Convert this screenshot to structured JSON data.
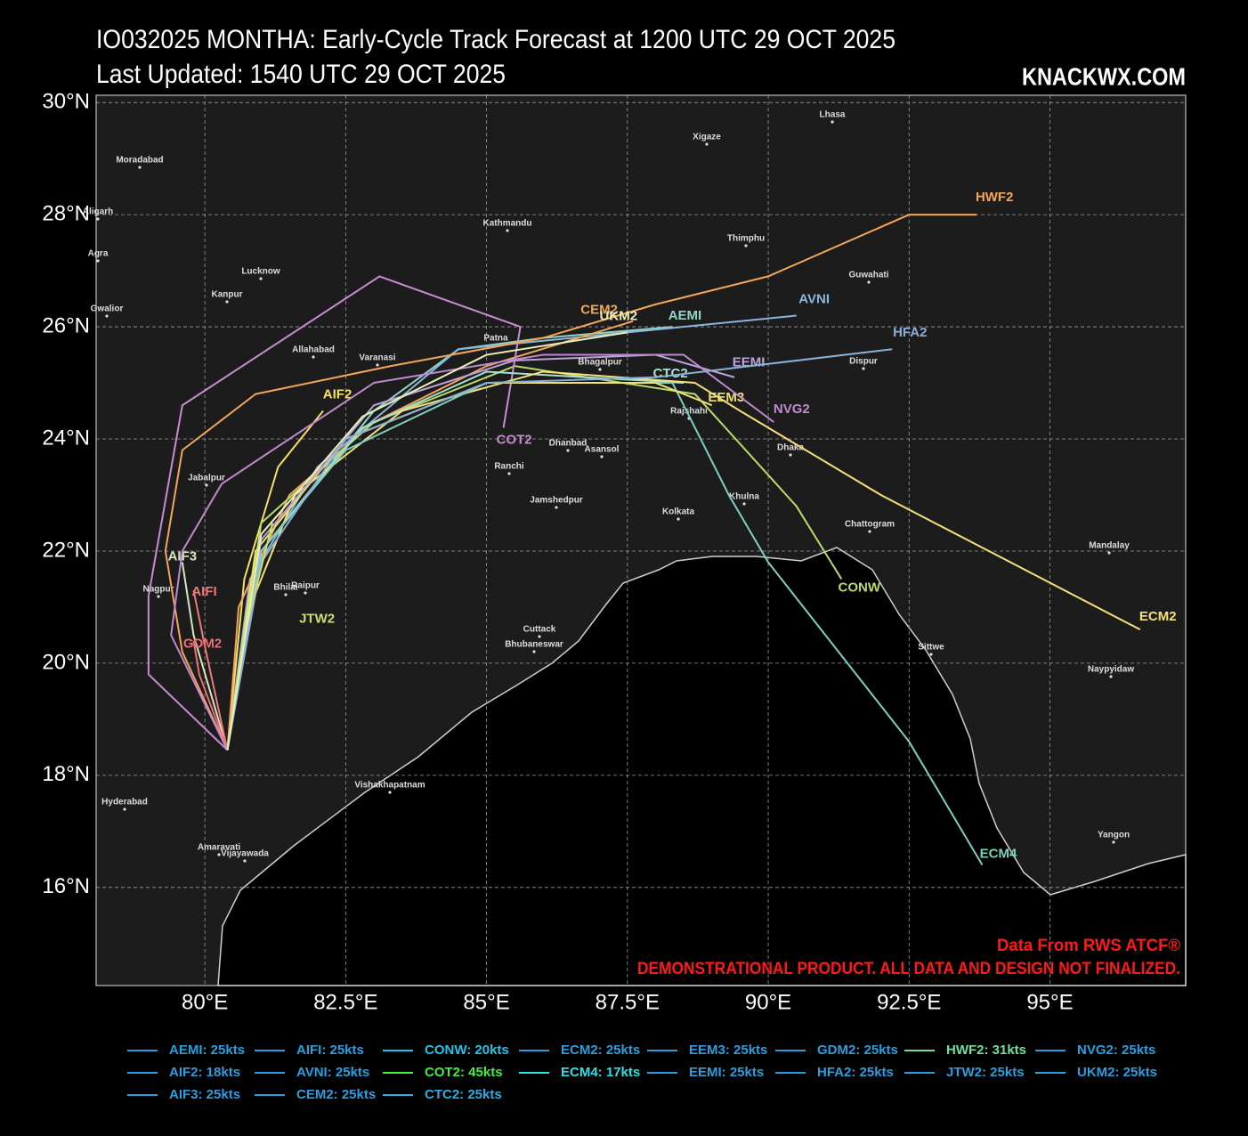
{
  "chart_data": {
    "type": "line",
    "title": "IO032025 MONTHA: Early-Cycle Track Forecast at 1200 UTC 29 OCT 2025",
    "subtitle": "Last Updated: 1540 UTC 29 OCT 2025",
    "brand": "KNACKWX.COM",
    "annotations": [
      "Data From RWS ATCF®",
      "DEMONSTRATIONAL PRODUCT. ALL DATA AND DESIGN NOT FINALIZED."
    ],
    "grid": true,
    "xlim": [
      78.07,
      97.41
    ],
    "ylim": [
      14.25,
      30.13
    ],
    "xticks": [
      {
        "value": 80,
        "label": "80°E"
      },
      {
        "value": 82.5,
        "label": "82.5°E"
      },
      {
        "value": 85,
        "label": "85°E"
      },
      {
        "value": 87.5,
        "label": "87.5°E"
      },
      {
        "value": 90,
        "label": "90°E"
      },
      {
        "value": 92.5,
        "label": "92.5°E"
      },
      {
        "value": 95,
        "label": "95°E"
      }
    ],
    "yticks": [
      {
        "value": 16,
        "label": "16°N"
      },
      {
        "value": 18,
        "label": "18°N"
      },
      {
        "value": 20,
        "label": "20°N"
      },
      {
        "value": 22,
        "label": "22°N"
      },
      {
        "value": 24,
        "label": "24°N"
      },
      {
        "value": 26,
        "label": "26°N"
      },
      {
        "value": 28,
        "label": "28°N"
      },
      {
        "value": 30,
        "label": "30°N"
      }
    ],
    "cities": [
      "Lhasa",
      "Xigaze",
      "Moradabad",
      "Aligarh",
      "Kathmandu",
      "Thimphu",
      "Agra",
      "Lucknow",
      "Guwahati",
      "Kanpur",
      "Gwalior",
      "Allahabad",
      "Varanasi",
      "Patna",
      "Bhagalpur",
      "Dispur",
      "Rajshahi",
      "Dhaka",
      "Dhanbad",
      "Asansol",
      "Ranchi",
      "Jabalpur",
      "Jamshedpur",
      "Khulna",
      "Kolkata",
      "Chattogram",
      "Mandalay",
      "Nagpur",
      "Bhilai",
      "Raipur",
      "Cuttack",
      "Bhubaneswar",
      "Sittwe",
      "Naypyidaw",
      "Vishakhapatnam",
      "Hyderabad",
      "Amaravati",
      "Vijayawada",
      "Yangon"
    ],
    "series": [
      {
        "name": "AEMI",
        "label": "AEMI: 25kts",
        "color": "#8fd6c8",
        "legend_color": "#2a9fe0",
        "x": [
          80.4,
          81.0,
          83.0,
          84.5,
          86.0,
          88.3
        ],
        "values": [
          18.45,
          22.0,
          24.5,
          25.6,
          25.8,
          26.0
        ]
      },
      {
        "name": "AIF2",
        "label": "AIF2: 18kts",
        "color": "#f5e06a",
        "legend_color": "#2a9fe0",
        "x": [
          80.4,
          80.7,
          81.3,
          82.1
        ],
        "values": [
          18.45,
          21.5,
          23.5,
          24.5
        ]
      },
      {
        "name": "AIF3",
        "label": "AIF3: 25kts",
        "color": "#d8e6c0",
        "legend_color": "#2a9fe0",
        "x": [
          80.4,
          79.8,
          79.6
        ],
        "values": [
          18.45,
          20.5,
          21.8
        ]
      },
      {
        "name": "AIFI",
        "label": "AIFI: 25kts",
        "color": "#f07878",
        "legend_color": "#2a9fe0",
        "x": [
          80.4,
          80.0,
          79.8
        ],
        "values": [
          18.45,
          20.3,
          21.3
        ]
      },
      {
        "name": "AVNI",
        "label": "AVNI: 25kts",
        "color": "#8cb4dc",
        "legend_color": "#2a9fe0",
        "x": [
          80.4,
          80.8,
          82.0,
          84.5,
          87.5,
          90.5
        ],
        "values": [
          18.45,
          21.5,
          23.5,
          25.6,
          25.9,
          26.2
        ]
      },
      {
        "name": "CEM2",
        "label": "CEM2: 25kts",
        "color": "#f5a55a",
        "legend_color": "#2a9fe0",
        "x": [
          80.4,
          80.6,
          81.5,
          83.0,
          85.0,
          87.6
        ],
        "values": [
          18.45,
          21.0,
          23.0,
          24.3,
          25.3,
          26.1
        ]
      },
      {
        "name": "CONW",
        "label": "CONW: 20kts",
        "color": "#b8dc6a",
        "legend_color": "#22c4ea",
        "x": [
          80.4,
          81.0,
          83.0,
          85.5,
          88.7,
          90.5,
          91.3
        ],
        "values": [
          18.45,
          22.5,
          24.3,
          25.3,
          24.8,
          22.8,
          21.5
        ]
      },
      {
        "name": "COT2",
        "label": "COT2: 45kts",
        "color": "#c88cd2",
        "legend_color": "#40f040",
        "x": [
          80.4,
          79.0,
          79.0,
          79.6,
          83.1,
          85.6,
          85.3
        ],
        "values": [
          18.45,
          19.8,
          21.2,
          24.6,
          26.9,
          26.0,
          24.2
        ]
      },
      {
        "name": "CTC2",
        "label": "CTC2: 25kts",
        "color": "#a8e0d0",
        "legend_color": "#2ab0e4",
        "x": [
          80.4,
          81.0,
          82.8,
          85.0,
          88.5
        ],
        "values": [
          18.45,
          22.0,
          24.2,
          25.2,
          25.0
        ]
      },
      {
        "name": "ECM2",
        "label": "ECM2: 25kts",
        "color": "#f5e07a",
        "legend_color": "#2a9fe0",
        "x": [
          80.4,
          80.8,
          81.6,
          83.5,
          86.0,
          88.7,
          89.5,
          92.0,
          96.6
        ],
        "values": [
          18.45,
          21.0,
          23.0,
          24.5,
          25.2,
          25.0,
          24.5,
          23.0,
          20.6
        ]
      },
      {
        "name": "ECM4",
        "label": "ECM4: 17kts",
        "color": "#7ecfc0",
        "legend_color": "#30e0e4",
        "x": [
          80.4,
          81.0,
          82.5,
          85.0,
          88.3,
          89.3,
          90.0,
          92.5,
          93.8
        ],
        "values": [
          18.45,
          22.0,
          23.8,
          25.0,
          25.0,
          23.0,
          21.8,
          18.6,
          16.4
        ]
      },
      {
        "name": "EEM3",
        "label": "EEM3: 25kts",
        "color": "#f0e070",
        "legend_color": "#2a9fe0",
        "x": [
          80.4,
          80.9,
          82.5,
          85.0,
          88.0,
          89.0
        ],
        "values": [
          18.45,
          22.0,
          24.0,
          25.0,
          25.0,
          24.6
        ]
      },
      {
        "name": "EEMI",
        "label": "EEMI: 25kts",
        "color": "#b9a3d9",
        "legend_color": "#2a9fe0",
        "x": [
          80.4,
          81.0,
          83.0,
          85.5,
          88.0,
          89.4
        ],
        "values": [
          18.45,
          22.2,
          24.6,
          25.4,
          25.5,
          25.1
        ]
      },
      {
        "name": "GDM2",
        "label": "GDM2: 25kts",
        "color": "#e87070",
        "legend_color": "#2a9fe0",
        "x": [
          80.4,
          79.9,
          79.8
        ],
        "values": [
          18.45,
          19.8,
          20.4
        ]
      },
      {
        "name": "HFA2",
        "label": "HFA2: 25kts",
        "color": "#8bb0d6",
        "legend_color": "#2a9fe0",
        "x": [
          80.4,
          81.0,
          82.5,
          85.0,
          88.0,
          92.2
        ],
        "values": [
          18.45,
          21.8,
          24.0,
          25.0,
          25.1,
          25.6
        ]
      },
      {
        "name": "HWF2",
        "label": "HWF2: 31kts",
        "color": "#f5a55a",
        "legend_color": "#70e0a0",
        "x": [
          80.4,
          79.6,
          79.3,
          79.6,
          80.9,
          83.3,
          86.0,
          88.0,
          90.0,
          92.5,
          93.7
        ],
        "values": [
          18.45,
          20.2,
          22.0,
          23.8,
          24.8,
          25.3,
          25.8,
          26.4,
          26.9,
          28.0,
          28.0
        ]
      },
      {
        "name": "JTW2",
        "label": "JTW2: 25kts",
        "color": "#c8e070",
        "legend_color": "#2a9fe0",
        "x": [
          80.4,
          80.7,
          81.2
        ],
        "values": [
          18.45,
          20.5,
          22.5
        ]
      },
      {
        "name": "NVG2",
        "label": "NVG2: 25kts",
        "color": "#c08ad0",
        "legend_color": "#2a9fe0",
        "x": [
          80.4,
          79.4,
          79.6,
          80.3,
          83.0,
          86.0,
          88.5,
          90.1
        ],
        "values": [
          18.45,
          20.5,
          22.0,
          23.2,
          25.0,
          25.5,
          25.5,
          24.3
        ]
      },
      {
        "name": "UKM2",
        "label": "UKM2: 25kts",
        "color": "#e8f0b8",
        "legend_color": "#2a9fe0",
        "x": [
          80.4,
          81.0,
          82.8,
          85.0,
          87.5
        ],
        "values": [
          18.45,
          22.3,
          24.4,
          25.5,
          25.9
        ]
      }
    ]
  }
}
